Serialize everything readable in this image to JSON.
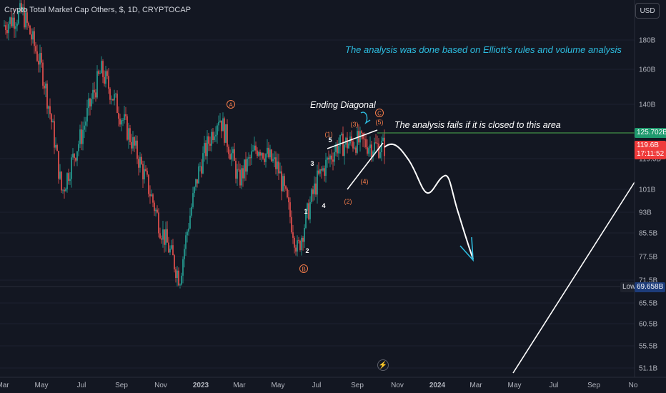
{
  "header": {
    "symbol_title": "Crypto Total Market Cap Others, $, 1D, CRYPTOCAP",
    "currency_button": "USD"
  },
  "annotations": {
    "top_note": "The analysis was done based on Elliott's rules and volume analysis",
    "fail_note": "The analysis fails if it is closed to this area",
    "diagonal_note": "Ending Diagonal",
    "wave_labels": [
      "A",
      "B",
      "C",
      "(1)",
      "(2)",
      "(3)",
      "(4)",
      "(5)",
      "1",
      "2",
      "3",
      "4",
      "5"
    ]
  },
  "price_badges": {
    "level_value": "125.702B",
    "last_value": "119.6B",
    "countdown": "17:11:52",
    "low_tag": "Low",
    "low_value": "69.658B"
  },
  "colors": {
    "background": "#131722",
    "bull": "#26a69a",
    "bear": "#ef5350",
    "level_line": "#4caf50",
    "annotation_cyan": "#2dbde0",
    "wave_orange": "#f57c4a"
  },
  "chart_data": {
    "type": "candlestick",
    "title": "Crypto Total Market Cap Others, $, 1D, CRYPTOCAP",
    "y_scale": "log",
    "y_ticks": [
      "180B",
      "160B",
      "140B",
      "119.6B",
      "101B",
      "93B",
      "85.5B",
      "77.5B",
      "71.5B",
      "65.5B",
      "60.5B",
      "55.5B",
      "51.1B"
    ],
    "x_ticks": [
      "Mar",
      "May",
      "Jul",
      "Sep",
      "Nov",
      "2023",
      "Mar",
      "May",
      "Jul",
      "Sep",
      "Nov",
      "2024",
      "Mar",
      "May",
      "Jul",
      "Sep",
      "No"
    ],
    "approx_close_path": [
      {
        "x": "2022-03",
        "y": 190
      },
      {
        "x": "2022-04",
        "y": 200
      },
      {
        "x": "2022-05",
        "y": 160
      },
      {
        "x": "2022-06",
        "y": 100
      },
      {
        "x": "2022-07",
        "y": 125
      },
      {
        "x": "2022-08",
        "y": 160
      },
      {
        "x": "2022-09",
        "y": 135
      },
      {
        "x": "2022-10",
        "y": 112
      },
      {
        "x": "2022-11",
        "y": 88
      },
      {
        "x": "2022-12",
        "y": 72
      },
      {
        "x": "2023-01",
        "y": 110
      },
      {
        "x": "2023-02",
        "y": 135
      },
      {
        "x": "2023-03",
        "y": 105
      },
      {
        "x": "2023-04",
        "y": 120
      },
      {
        "x": "2023-05",
        "y": 110
      },
      {
        "x": "2023-06",
        "y": 80
      },
      {
        "x": "2023-07",
        "y": 105
      },
      {
        "x": "2023-08",
        "y": 120
      },
      {
        "x": "2023-09",
        "y": 122
      },
      {
        "x": "2023-10",
        "y": 119.6
      }
    ],
    "resistance_level": 125.702,
    "period_low": 69.658,
    "last_price": 119.6
  }
}
